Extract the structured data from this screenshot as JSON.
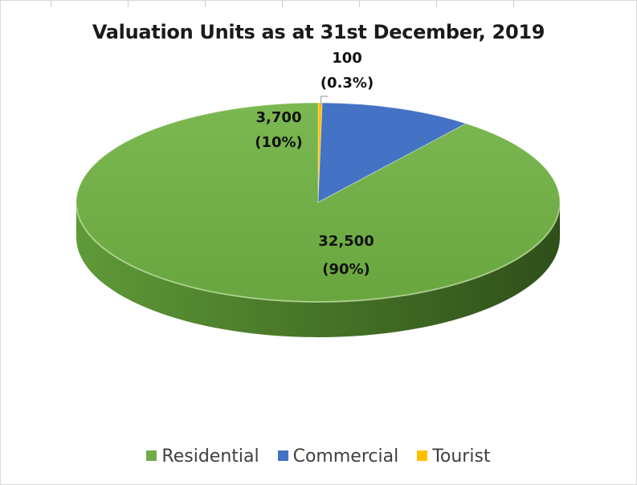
{
  "chart_data": {
    "type": "pie",
    "title": "Valuation Units as at 31st December, 2019",
    "categories": [
      "Residential",
      "Commercial",
      "Tourist"
    ],
    "values": [
      32500,
      3700,
      100
    ],
    "value_labels": [
      "32,500",
      "3,700",
      "100"
    ],
    "percent_labels": [
      "(90%)",
      "(10%)",
      "(0.3%)"
    ],
    "legend_position": "bottom",
    "colors": {
      "Residential": "#70ad47",
      "Commercial": "#4472c4",
      "Tourist": "#ffc000"
    }
  }
}
